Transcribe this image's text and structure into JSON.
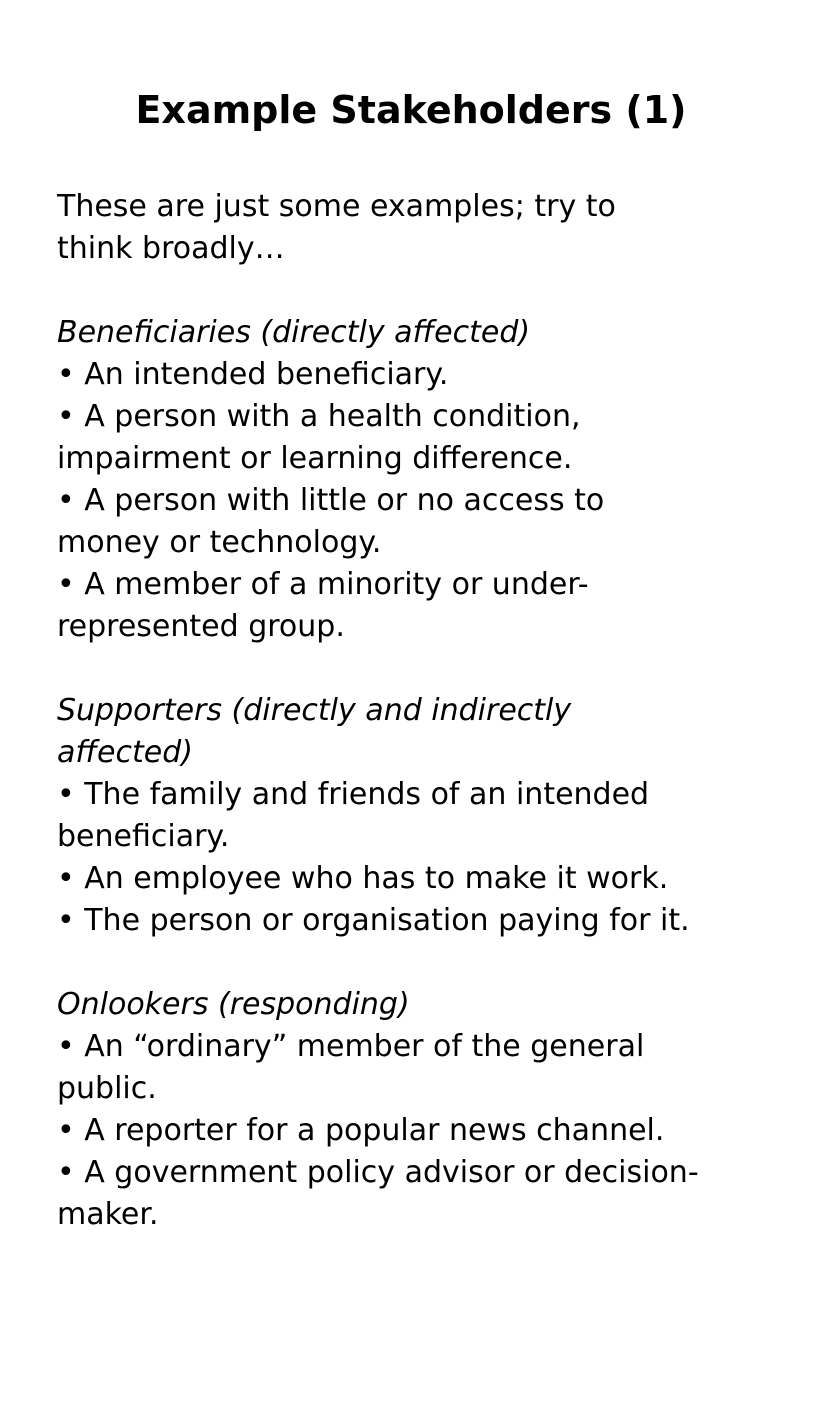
{
  "title": "Example Stakeholders (1)",
  "intro": [
    "These are just some examples; try to",
    "think broadly…"
  ],
  "sections": [
    {
      "heading": [
        "Beneficiaries (directly affected)"
      ],
      "items": [
        "• An intended beneficiary.",
        "• A person with a health condition,",
        "impairment or learning difference.",
        "• A person with little or no access to",
        "money or technology.",
        "• A member of a minority or under-",
        "represented group."
      ]
    },
    {
      "heading": [
        "Supporters (directly and indirectly",
        "affected)"
      ],
      "items": [
        "• The family and friends of an intended",
        "beneficiary.",
        "• An employee who has to make it work.",
        "• The person or organisation paying for it."
      ]
    },
    {
      "heading": [
        "Onlookers (responding)"
      ],
      "items": [
        "• An “ordinary” member of the general",
        "public.",
        "• A reporter for a popular news channel.",
        "• A government policy advisor or decision-",
        "maker."
      ]
    }
  ]
}
